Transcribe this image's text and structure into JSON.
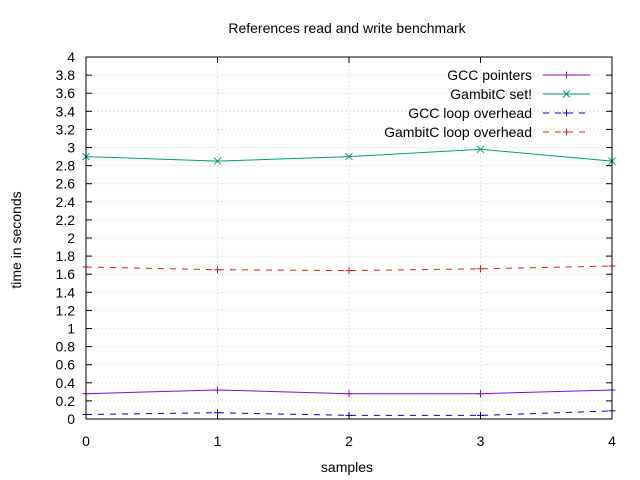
{
  "chart_data": {
    "type": "line",
    "title": "References read and write benchmark",
    "xlabel": "samples",
    "ylabel": "time in seconds",
    "x": [
      0,
      1,
      2,
      3,
      4
    ],
    "xlim": [
      0,
      4
    ],
    "ylim": [
      0,
      4
    ],
    "x_ticks": [
      "0",
      "1",
      "2",
      "3",
      "4"
    ],
    "y_ticks": [
      "0",
      "0.2",
      "0.4",
      "0.6",
      "0.8",
      "1",
      "1.2",
      "1.4",
      "1.6",
      "1.8",
      "2",
      "2.2",
      "2.4",
      "2.6",
      "2.8",
      "3",
      "3.2",
      "3.4",
      "3.6",
      "3.8",
      "4"
    ],
    "grid": true,
    "legend_position": "top-right",
    "series": [
      {
        "name": "GCC pointers",
        "values": [
          0.28,
          0.32,
          0.28,
          0.28,
          0.32
        ],
        "color": "#9400d3",
        "dash": "solid",
        "marker": "plus"
      },
      {
        "name": "GambitC set!",
        "values": [
          2.9,
          2.85,
          2.9,
          2.98,
          2.85
        ],
        "color": "#009e73",
        "dash": "solid",
        "marker": "x"
      },
      {
        "name": "GCC loop overhead",
        "values": [
          0.05,
          0.07,
          0.04,
          0.04,
          0.09
        ],
        "color": "#0000cc",
        "dash": "dashed",
        "marker": "plus"
      },
      {
        "name": "GambitC loop overhead",
        "values": [
          1.68,
          1.65,
          1.64,
          1.66,
          1.69
        ],
        "color": "#e51e10",
        "dash": "dashed",
        "marker": "plus"
      }
    ]
  }
}
